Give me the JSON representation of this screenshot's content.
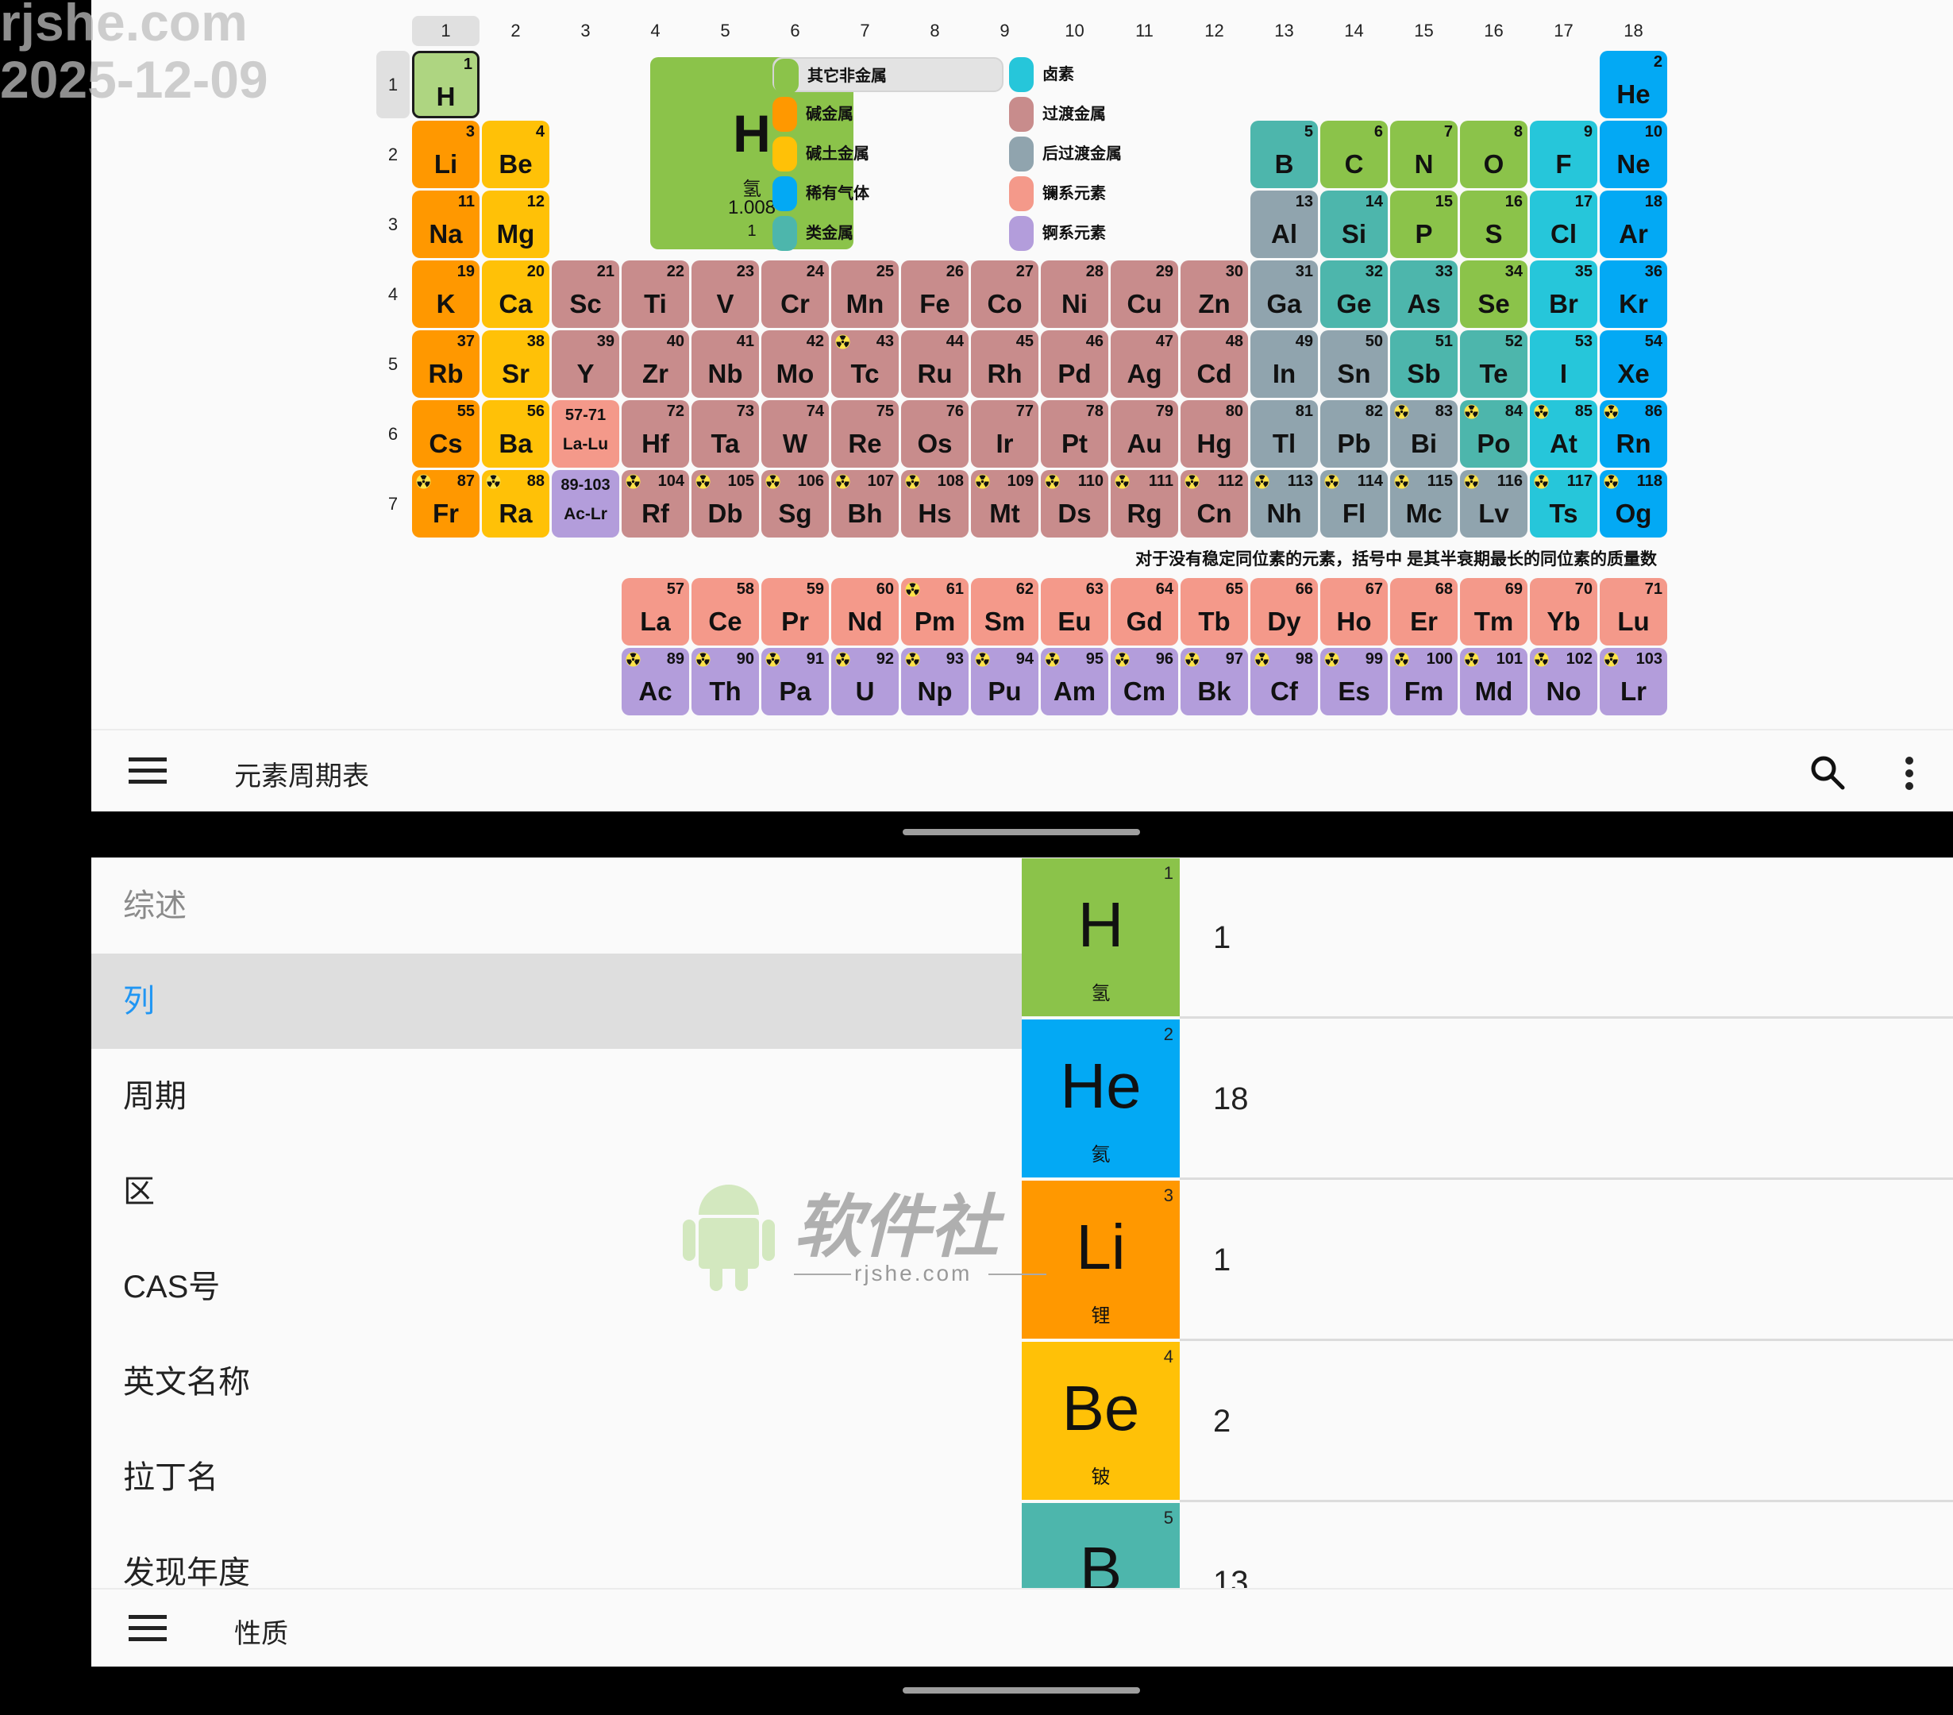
{
  "watermark": {
    "top_left": "rjshe.com 2025-12-09",
    "logo_text": "软件社",
    "logo_sub": "rjshe.com"
  },
  "colors": {
    "nm": "#8bc34a",
    "ak": "#ff9800",
    "ae": "#ffc107",
    "ng": "#03a9f4",
    "ml": "#4db6ac",
    "hl": "#26c6da",
    "tm": "#c88c8c",
    "pt": "#90a4ae",
    "la": "#f4998a",
    "ac": "#b39ddb",
    "selected": "#aed581",
    "accent": "#2196f3"
  },
  "table": {
    "columns": [
      "1",
      "2",
      "3",
      "4",
      "5",
      "6",
      "7",
      "8",
      "9",
      "10",
      "11",
      "12",
      "13",
      "14",
      "15",
      "16",
      "17",
      "18"
    ],
    "rows": [
      "1",
      "2",
      "3",
      "4",
      "5",
      "6",
      "7"
    ],
    "selected_column": "1",
    "selected_row": "1",
    "selected_element": 1,
    "placeholders": [
      {
        "range": "57-71",
        "label": "La-Lu",
        "cat": "la",
        "group": 3,
        "period": 6
      },
      {
        "range": "89-103",
        "label": "Ac-Lr",
        "cat": "ac",
        "group": 3,
        "period": 7
      }
    ],
    "elements": [
      [
        1,
        "H",
        "nm",
        0
      ],
      [
        2,
        "He",
        "ng",
        0
      ],
      [
        3,
        "Li",
        "ak",
        0
      ],
      [
        4,
        "Be",
        "ae",
        0
      ],
      [
        5,
        "B",
        "ml",
        0
      ],
      [
        6,
        "C",
        "nm",
        0
      ],
      [
        7,
        "N",
        "nm",
        0
      ],
      [
        8,
        "O",
        "nm",
        0
      ],
      [
        9,
        "F",
        "hl",
        0
      ],
      [
        10,
        "Ne",
        "ng",
        0
      ],
      [
        11,
        "Na",
        "ak",
        0
      ],
      [
        12,
        "Mg",
        "ae",
        0
      ],
      [
        13,
        "Al",
        "pt",
        0
      ],
      [
        14,
        "Si",
        "ml",
        0
      ],
      [
        15,
        "P",
        "nm",
        0
      ],
      [
        16,
        "S",
        "nm",
        0
      ],
      [
        17,
        "Cl",
        "hl",
        0
      ],
      [
        18,
        "Ar",
        "ng",
        0
      ],
      [
        19,
        "K",
        "ak",
        0
      ],
      [
        20,
        "Ca",
        "ae",
        0
      ],
      [
        21,
        "Sc",
        "tm",
        0
      ],
      [
        22,
        "Ti",
        "tm",
        0
      ],
      [
        23,
        "V",
        "tm",
        0
      ],
      [
        24,
        "Cr",
        "tm",
        0
      ],
      [
        25,
        "Mn",
        "tm",
        0
      ],
      [
        26,
        "Fe",
        "tm",
        0
      ],
      [
        27,
        "Co",
        "tm",
        0
      ],
      [
        28,
        "Ni",
        "tm",
        0
      ],
      [
        29,
        "Cu",
        "tm",
        0
      ],
      [
        30,
        "Zn",
        "tm",
        0
      ],
      [
        31,
        "Ga",
        "pt",
        0
      ],
      [
        32,
        "Ge",
        "ml",
        0
      ],
      [
        33,
        "As",
        "ml",
        0
      ],
      [
        34,
        "Se",
        "nm",
        0
      ],
      [
        35,
        "Br",
        "hl",
        0
      ],
      [
        36,
        "Kr",
        "ng",
        0
      ],
      [
        37,
        "Rb",
        "ak",
        0
      ],
      [
        38,
        "Sr",
        "ae",
        0
      ],
      [
        39,
        "Y",
        "tm",
        0
      ],
      [
        40,
        "Zr",
        "tm",
        0
      ],
      [
        41,
        "Nb",
        "tm",
        0
      ],
      [
        42,
        "Mo",
        "tm",
        0
      ],
      [
        43,
        "Tc",
        "tm",
        1
      ],
      [
        44,
        "Ru",
        "tm",
        0
      ],
      [
        45,
        "Rh",
        "tm",
        0
      ],
      [
        46,
        "Pd",
        "tm",
        0
      ],
      [
        47,
        "Ag",
        "tm",
        0
      ],
      [
        48,
        "Cd",
        "tm",
        0
      ],
      [
        49,
        "In",
        "pt",
        0
      ],
      [
        50,
        "Sn",
        "pt",
        0
      ],
      [
        51,
        "Sb",
        "ml",
        0
      ],
      [
        52,
        "Te",
        "ml",
        0
      ],
      [
        53,
        "I",
        "hl",
        0
      ],
      [
        54,
        "Xe",
        "ng",
        0
      ],
      [
        55,
        "Cs",
        "ak",
        0
      ],
      [
        56,
        "Ba",
        "ae",
        0
      ],
      [
        57,
        "La",
        "la",
        0
      ],
      [
        58,
        "Ce",
        "la",
        0
      ],
      [
        59,
        "Pr",
        "la",
        0
      ],
      [
        60,
        "Nd",
        "la",
        0
      ],
      [
        61,
        "Pm",
        "la",
        1
      ],
      [
        62,
        "Sm",
        "la",
        0
      ],
      [
        63,
        "Eu",
        "la",
        0
      ],
      [
        64,
        "Gd",
        "la",
        0
      ],
      [
        65,
        "Tb",
        "la",
        0
      ],
      [
        66,
        "Dy",
        "la",
        0
      ],
      [
        67,
        "Ho",
        "la",
        0
      ],
      [
        68,
        "Er",
        "la",
        0
      ],
      [
        69,
        "Tm",
        "la",
        0
      ],
      [
        70,
        "Yb",
        "la",
        0
      ],
      [
        71,
        "Lu",
        "la",
        0
      ],
      [
        72,
        "Hf",
        "tm",
        0
      ],
      [
        73,
        "Ta",
        "tm",
        0
      ],
      [
        74,
        "W",
        "tm",
        0
      ],
      [
        75,
        "Re",
        "tm",
        0
      ],
      [
        76,
        "Os",
        "tm",
        0
      ],
      [
        77,
        "Ir",
        "tm",
        0
      ],
      [
        78,
        "Pt",
        "tm",
        0
      ],
      [
        79,
        "Au",
        "tm",
        0
      ],
      [
        80,
        "Hg",
        "tm",
        0
      ],
      [
        81,
        "Tl",
        "pt",
        0
      ],
      [
        82,
        "Pb",
        "pt",
        0
      ],
      [
        83,
        "Bi",
        "pt",
        1
      ],
      [
        84,
        "Po",
        "ml",
        1
      ],
      [
        85,
        "At",
        "hl",
        1
      ],
      [
        86,
        "Rn",
        "ng",
        1
      ],
      [
        87,
        "Fr",
        "ak",
        1
      ],
      [
        88,
        "Ra",
        "ae",
        1
      ],
      [
        89,
        "Ac",
        "ac",
        1
      ],
      [
        90,
        "Th",
        "ac",
        1
      ],
      [
        91,
        "Pa",
        "ac",
        1
      ],
      [
        92,
        "U",
        "ac",
        1
      ],
      [
        93,
        "Np",
        "ac",
        1
      ],
      [
        94,
        "Pu",
        "ac",
        1
      ],
      [
        95,
        "Am",
        "ac",
        1
      ],
      [
        96,
        "Cm",
        "ac",
        1
      ],
      [
        97,
        "Bk",
        "ac",
        1
      ],
      [
        98,
        "Cf",
        "ac",
        1
      ],
      [
        99,
        "Es",
        "ac",
        1
      ],
      [
        100,
        "Fm",
        "ac",
        1
      ],
      [
        101,
        "Md",
        "ac",
        1
      ],
      [
        102,
        "No",
        "ac",
        1
      ],
      [
        103,
        "Lr",
        "ac",
        1
      ],
      [
        104,
        "Rf",
        "tm",
        1
      ],
      [
        105,
        "Db",
        "tm",
        1
      ],
      [
        106,
        "Sg",
        "tm",
        1
      ],
      [
        107,
        "Bh",
        "tm",
        1
      ],
      [
        108,
        "Hs",
        "tm",
        1
      ],
      [
        109,
        "Mt",
        "tm",
        1
      ],
      [
        110,
        "Ds",
        "tm",
        1
      ],
      [
        111,
        "Rg",
        "tm",
        1
      ],
      [
        112,
        "Cn",
        "tm",
        1
      ],
      [
        113,
        "Nh",
        "pt",
        1
      ],
      [
        114,
        "Fl",
        "pt",
        1
      ],
      [
        115,
        "Mc",
        "pt",
        1
      ],
      [
        116,
        "Lv",
        "pt",
        1
      ],
      [
        117,
        "Ts",
        "hl",
        1
      ],
      [
        118,
        "Og",
        "ng",
        1
      ]
    ],
    "note": "对于没有稳定同位素的元素，括号中 是其半衰期最长的同位素的质量数"
  },
  "detail": {
    "number": "1",
    "symbol": "H",
    "name": "氢",
    "mass": "1.008",
    "group": "1"
  },
  "legend": [
    {
      "label": "其它非金属",
      "cat": "nm",
      "selected": true
    },
    {
      "label": "碱金属",
      "cat": "ak"
    },
    {
      "label": "碱土金属",
      "cat": "ae"
    },
    {
      "label": "稀有气体",
      "cat": "ng"
    },
    {
      "label": "类金属",
      "cat": "ml"
    },
    {
      "label": "卤素",
      "cat": "hl"
    },
    {
      "label": "过渡金属",
      "cat": "tm"
    },
    {
      "label": "后过渡金属",
      "cat": "pt"
    },
    {
      "label": "镧系元素",
      "cat": "la"
    },
    {
      "label": "锕系元素",
      "cat": "ac"
    }
  ],
  "top_toolbar": {
    "title": "元素周期表",
    "menu_icon": "hamburger-icon",
    "search_icon": "search-icon",
    "more_icon": "more-vert-icon"
  },
  "property_list": {
    "items": [
      "综述",
      "列",
      "周期",
      "区",
      "CAS号",
      "英文名称",
      "拉丁名",
      "发现年度"
    ],
    "selected": "列",
    "dimmed": "综述"
  },
  "property_values": [
    {
      "number": "1",
      "symbol": "H",
      "name": "氢",
      "value": "1",
      "cat": "nm"
    },
    {
      "number": "2",
      "symbol": "He",
      "name": "氦",
      "value": "18",
      "cat": "ng"
    },
    {
      "number": "3",
      "symbol": "Li",
      "name": "锂",
      "value": "1",
      "cat": "ak"
    },
    {
      "number": "4",
      "symbol": "Be",
      "name": "铍",
      "value": "2",
      "cat": "ae"
    },
    {
      "number": "5",
      "symbol": "B",
      "value": "13",
      "cat": "ml"
    }
  ],
  "bottom_toolbar": {
    "title": "性质",
    "menu_icon": "hamburger-icon"
  }
}
